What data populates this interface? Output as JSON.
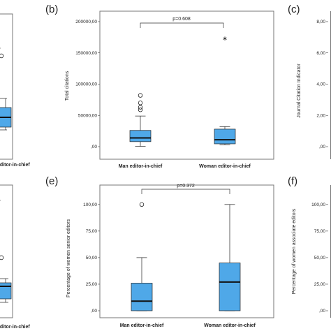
{
  "panels": {
    "a": {
      "partial_label": "editor-in-chief"
    },
    "b": {
      "letter": "(b)"
    },
    "c": {
      "letter": "(c)"
    },
    "d": {
      "partial_label": "editor-in-chief"
    },
    "e": {
      "letter": "(e)"
    },
    "f": {
      "letter": "(f)"
    }
  },
  "colors": {
    "box_fill": "#4fa8e8",
    "box_stroke": "#222222",
    "frame": "#777777"
  },
  "chart_data": [
    {
      "panel": "b",
      "type": "box",
      "ylabel": "Total citations",
      "ylim": [
        0,
        210000
      ],
      "yticks": [
        0,
        50000,
        100000,
        150000,
        200000
      ],
      "yticklabels": [
        ",00",
        "50000,00",
        "100000,00",
        "150000,00",
        "200000,00"
      ],
      "categories": [
        "Man editor-in-chief",
        "Woman editor-in-chief"
      ],
      "annotation": "p=0.608",
      "boxes": [
        {
          "whisker_low": 500,
          "q1": 8000,
          "median": 14000,
          "q3": 26000,
          "whisker_high": 49000,
          "outliers": [
            {
              "value": 59000,
              "marker": "o"
            },
            {
              "value": 63000,
              "marker": "o"
            },
            {
              "value": 70000,
              "marker": "o"
            },
            {
              "value": 82000,
              "marker": "o"
            }
          ]
        },
        {
          "whisker_low": 3000,
          "q1": 4500,
          "median": 11000,
          "q3": 28000,
          "whisker_high": 32000,
          "outliers": [
            {
              "value": 173000,
              "marker": "*"
            }
          ]
        }
      ]
    },
    {
      "panel": "c",
      "type": "box",
      "ylabel": "Journal Citation Indicator",
      "ylim": [
        0,
        8.4
      ],
      "yticks": [
        0,
        2,
        4,
        6,
        8
      ],
      "yticklabels": [
        ",00",
        "2,00",
        "4,00",
        "6,00",
        "8,00"
      ]
    },
    {
      "panel": "e",
      "type": "box",
      "ylabel": "Percentage of women senior editors",
      "ylim": [
        0,
        115
      ],
      "yticks": [
        0,
        25,
        50,
        75,
        100
      ],
      "yticklabels": [
        ",00",
        "25,00",
        "50,00",
        "75,00",
        "100,00"
      ],
      "categories": [
        "Man editor-in-chief",
        "Woman editor-in-chief"
      ],
      "annotation": "p=0.372",
      "boxes": [
        {
          "whisker_low": 0,
          "q1": 0,
          "median": 9,
          "q3": 26,
          "whisker_high": 50,
          "outliers": [
            {
              "value": 100,
              "marker": "o"
            }
          ]
        },
        {
          "whisker_low": 0,
          "q1": 0,
          "median": 27,
          "q3": 45,
          "whisker_high": 100,
          "outliers": []
        }
      ]
    },
    {
      "panel": "f",
      "type": "box",
      "ylabel": "Percentage of women associate editors",
      "ylim": [
        0,
        115
      ],
      "yticks": [
        0,
        25,
        50,
        75,
        100
      ],
      "yticklabels": [
        ",00",
        "25,00",
        "50,00",
        "75,00",
        "100,00"
      ]
    }
  ]
}
